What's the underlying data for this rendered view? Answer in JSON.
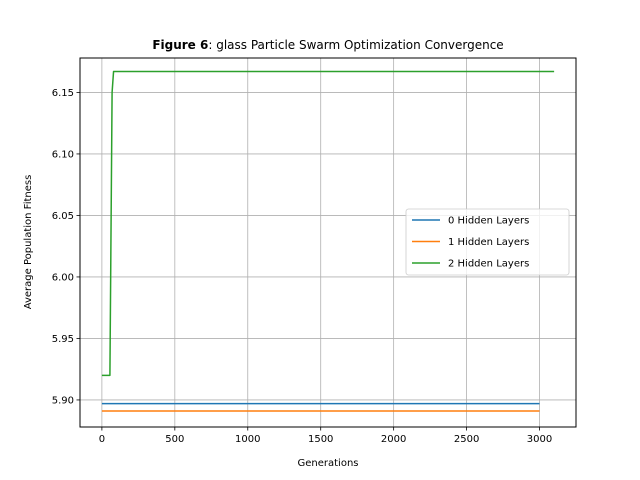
{
  "chart_data": {
    "type": "line",
    "title_bold": "Figure 6",
    "title_rest": ": glass Particle Swarm Optimization Convergence",
    "xlabel": "Generations",
    "ylabel": "Average Population Fitness",
    "xlim": [
      -150,
      3250
    ],
    "ylim": [
      5.878,
      6.178
    ],
    "xticks": [
      0,
      500,
      1000,
      1500,
      2000,
      2500,
      3000
    ],
    "yticks": [
      5.9,
      5.95,
      6.0,
      6.05,
      6.1,
      6.15
    ],
    "xtick_labels": [
      "0",
      "500",
      "1000",
      "1500",
      "2000",
      "2500",
      "3000"
    ],
    "ytick_labels": [
      "5.90",
      "5.95",
      "6.00",
      "6.05",
      "6.10",
      "6.15"
    ],
    "grid": true,
    "legend_position": "center-right",
    "series": [
      {
        "name": "0 Hidden Layers",
        "color": "#1f77b4",
        "points": [
          [
            0,
            5.897
          ],
          [
            3000,
            5.897
          ]
        ]
      },
      {
        "name": "1 Hidden Layers",
        "color": "#ff7f0e",
        "points": [
          [
            0,
            5.891
          ],
          [
            3000,
            5.891
          ]
        ]
      },
      {
        "name": "2 Hidden Layers",
        "color": "#2ca02c",
        "points": [
          [
            0,
            5.92
          ],
          [
            55,
            5.92
          ],
          [
            70,
            6.15
          ],
          [
            80,
            6.167
          ],
          [
            3100,
            6.167
          ]
        ]
      }
    ]
  }
}
